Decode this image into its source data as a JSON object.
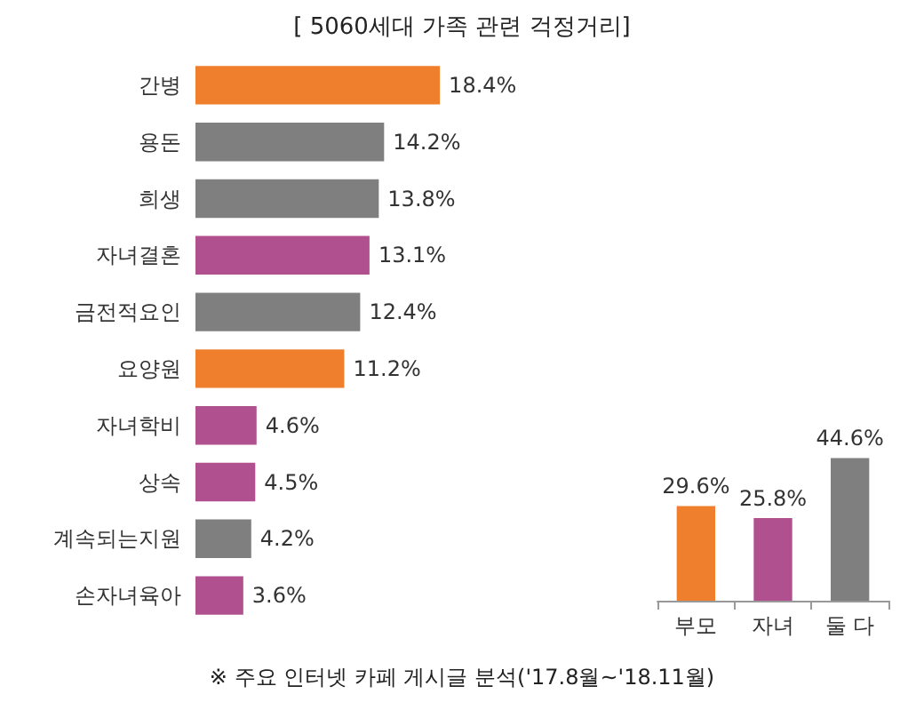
{
  "chart_data": [
    {
      "type": "bar",
      "title": "[ 5060세대 가족 관련 걱정거리]",
      "orientation": "horizontal",
      "tick_labels": "y",
      "categories": [
        "간병",
        "용돈",
        "희생",
        "자녀결혼",
        "금전적요인",
        "요양원",
        "자녀학비",
        "상속",
        "계속되는지원",
        "손자녀육아"
      ],
      "values": [
        18.4,
        14.2,
        13.8,
        13.1,
        12.4,
        11.2,
        4.6,
        4.5,
        4.2,
        3.6
      ],
      "colors": [
        "#f07f2d",
        "#7f7f7f",
        "#7f7f7f",
        "#b0508f",
        "#7f7f7f",
        "#f07f2d",
        "#b0508f",
        "#b0508f",
        "#7f7f7f",
        "#b0508f"
      ],
      "value_labels": [
        "18.4%",
        "14.2%",
        "13.8%",
        "13.1%",
        "12.4%",
        "11.2%",
        "4.6%",
        "4.5%",
        "4.2%",
        "3.6%"
      ],
      "annotations": [
        "※ 주요 인터넷 카페 게시글 분석('17.8월~'18.11월)"
      ]
    },
    {
      "type": "bar",
      "tick_labels": "x",
      "categories": [
        "부모",
        "자녀",
        "둘 다"
      ],
      "values": [
        29.6,
        25.8,
        44.6
      ],
      "colors": [
        "#f07f2d",
        "#b0508f",
        "#7f7f7f"
      ],
      "value_labels": [
        "29.6%",
        "25.8%",
        "44.6%"
      ]
    }
  ]
}
